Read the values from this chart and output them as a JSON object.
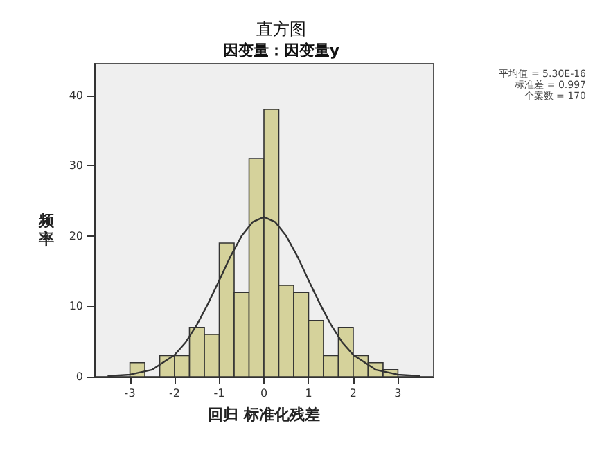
{
  "chart_data": {
    "type": "histogram",
    "title": "直方图",
    "subtitle": "因变量：因变量y",
    "xlabel": "回归 标准化残差",
    "ylabel": "频率",
    "bins": [
      -3,
      -2.667,
      -2.333,
      -2,
      -1.667,
      -1.333,
      -1,
      -0.667,
      -0.333,
      0,
      0.333,
      0.667,
      1,
      1.333,
      1.667,
      2,
      2.333,
      2.667,
      3
    ],
    "values": [
      2,
      0,
      3,
      3,
      7,
      6,
      19,
      12,
      31,
      38,
      13,
      12,
      8,
      3,
      7,
      3,
      2,
      1
    ],
    "color": "#d5d29b",
    "series": [
      {
        "type": "line",
        "color": "#333333",
        "x": [
          -3.5,
          -3,
          -2.5,
          -2,
          -1.75,
          -1.5,
          -1.25,
          -1,
          -0.75,
          -0.5,
          -0.25,
          0,
          0.25,
          0.5,
          0.75,
          1,
          1.25,
          1.5,
          1.75,
          2,
          2.5,
          3,
          3.5
        ],
        "values": [
          0.1,
          0.3,
          1,
          3.1,
          4.9,
          7.4,
          10.4,
          13.7,
          17.1,
          20,
          22,
          22.7,
          22,
          20,
          17.1,
          13.7,
          10.4,
          7.4,
          4.9,
          3.1,
          1,
          0.3,
          0.1
        ]
      }
    ],
    "xlim": [
      -3.8,
      3.8
    ],
    "xticks": [
      -3,
      -2,
      -1,
      0,
      1,
      2,
      3
    ],
    "ylim": [
      0,
      44.5
    ],
    "yticks": [
      0,
      10,
      20,
      30,
      40
    ],
    "annotations": [
      "平均值 = 5.30E-16",
      "标准差 = 0.997",
      "个案数 = 170"
    ],
    "grid": false,
    "marker": "none"
  }
}
